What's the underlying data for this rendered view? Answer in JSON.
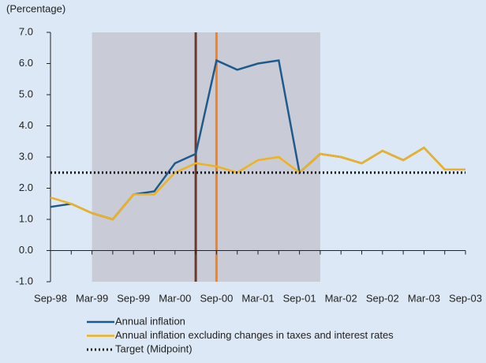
{
  "chart_data": {
    "type": "line",
    "y_label": "(Percentage)",
    "categories": [
      "Sep-98",
      null,
      "Mar-99",
      null,
      "Sep-99",
      null,
      "Mar-00",
      null,
      "Sep-00",
      null,
      "Mar-01",
      null,
      "Sep-01",
      null,
      "Mar-02",
      null,
      "Sep-02",
      null,
      "Mar-03",
      null,
      "Sep-03"
    ],
    "series": [
      {
        "name": "Annual inflation",
        "color": "#1f5a8c",
        "style": "solid",
        "values": [
          1.4,
          1.5,
          1.2,
          1.0,
          1.8,
          1.9,
          2.8,
          3.1,
          6.1,
          5.8,
          6.0,
          6.1,
          2.5,
          3.1,
          3.0,
          2.8,
          3.2,
          2.9,
          3.3,
          2.6,
          2.6
        ]
      },
      {
        "name": "Annual inflation excluding changes in taxes and interest rates",
        "color": "#eeb21e",
        "style": "solid",
        "values": [
          1.7,
          1.5,
          1.2,
          1.0,
          1.8,
          1.8,
          2.5,
          2.8,
          2.7,
          2.5,
          2.9,
          3.0,
          2.5,
          3.1,
          3.0,
          2.8,
          3.2,
          2.9,
          3.3,
          2.6,
          2.6
        ]
      },
      {
        "name": "Target (Midpoint)",
        "color": "#111111",
        "style": "dotted",
        "values": [
          2.5,
          2.5,
          2.5,
          2.5,
          2.5,
          2.5,
          2.5,
          2.5,
          2.5,
          2.5,
          2.5,
          2.5,
          2.5,
          2.5,
          2.5,
          2.5,
          2.5,
          2.5,
          2.5,
          2.5,
          2.5
        ]
      }
    ],
    "ylim": [
      -1,
      7
    ],
    "yticks": [
      {
        "value": -1,
        "label": "-1.0"
      },
      {
        "value": 0,
        "label": "0.0"
      },
      {
        "value": 1,
        "label": "1.0"
      },
      {
        "value": 2,
        "label": "2.0"
      },
      {
        "value": 3,
        "label": "3.0"
      },
      {
        "value": 4,
        "label": "4.0"
      },
      {
        "value": 5,
        "label": "5.0"
      },
      {
        "value": 6,
        "label": "6.0"
      },
      {
        "value": 7,
        "label": "7.0"
      }
    ]
  }
}
